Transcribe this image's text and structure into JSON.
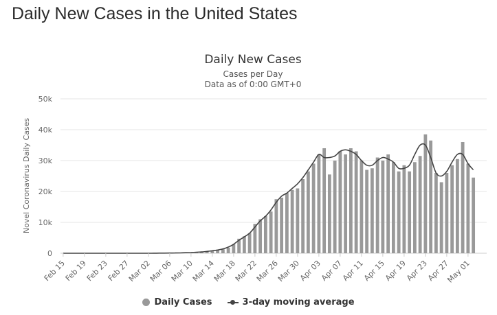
{
  "page": {
    "heading": "Daily New Cases in the United States"
  },
  "colors": {
    "bar": "#999999",
    "line": "#444444",
    "grid": "#e6e6e6",
    "text": "#666666"
  },
  "chart_data": {
    "type": "bar",
    "title": "Daily New Cases",
    "subtitle": "Cases per Day",
    "subtitle2": "Data as of 0:00 GMT+0",
    "ylabel": "Novel Coronavirus Daily Cases",
    "xlabel": "",
    "ylim": [
      0,
      50000
    ],
    "y_ticks": [
      0,
      10000,
      20000,
      30000,
      40000,
      50000
    ],
    "y_tick_labels": [
      "0",
      "10k",
      "20k",
      "30k",
      "40k",
      "50k"
    ],
    "x_tick_labels": [
      "Feb 15",
      "Feb 19",
      "Feb 23",
      "Feb 27",
      "Mar 02",
      "Mar 06",
      "Mar 10",
      "Mar 14",
      "Mar 18",
      "Mar 22",
      "Mar 26",
      "Mar 30",
      "Apr 03",
      "Apr 07",
      "Apr 11",
      "Apr 15",
      "Apr 19",
      "Apr 23",
      "Apr 27",
      "May 01"
    ],
    "x_tick_every": 4,
    "grid": true,
    "legend_position": "bottom-center",
    "categories": [
      "Feb 15",
      "Feb 16",
      "Feb 17",
      "Feb 18",
      "Feb 19",
      "Feb 20",
      "Feb 21",
      "Feb 22",
      "Feb 23",
      "Feb 24",
      "Feb 25",
      "Feb 26",
      "Feb 27",
      "Feb 28",
      "Feb 29",
      "Mar 01",
      "Mar 02",
      "Mar 03",
      "Mar 04",
      "Mar 05",
      "Mar 06",
      "Mar 07",
      "Mar 08",
      "Mar 09",
      "Mar 10",
      "Mar 11",
      "Mar 12",
      "Mar 13",
      "Mar 14",
      "Mar 15",
      "Mar 16",
      "Mar 17",
      "Mar 18",
      "Mar 19",
      "Mar 20",
      "Mar 21",
      "Mar 22",
      "Mar 23",
      "Mar 24",
      "Mar 25",
      "Mar 26",
      "Mar 27",
      "Mar 28",
      "Mar 29",
      "Mar 30",
      "Mar 31",
      "Apr 01",
      "Apr 02",
      "Apr 03",
      "Apr 04",
      "Apr 05",
      "Apr 06",
      "Apr 07",
      "Apr 08",
      "Apr 09",
      "Apr 10",
      "Apr 11",
      "Apr 12",
      "Apr 13",
      "Apr 14",
      "Apr 15",
      "Apr 16",
      "Apr 17",
      "Apr 18",
      "Apr 19",
      "Apr 20",
      "Apr 21",
      "Apr 22",
      "Apr 23",
      "Apr 24",
      "Apr 25",
      "Apr 26",
      "Apr 27",
      "Apr 28",
      "Apr 29",
      "Apr 30",
      "May 01",
      "May 02",
      "May 03",
      "May 04"
    ],
    "series": [
      {
        "name": "Daily Cases",
        "type": "bar",
        "values": [
          0,
          0,
          0,
          0,
          0,
          0,
          0,
          0,
          0,
          0,
          0,
          0,
          0,
          0,
          0,
          0,
          0,
          20,
          30,
          50,
          70,
          100,
          120,
          150,
          250,
          300,
          450,
          550,
          800,
          1000,
          1300,
          1800,
          2900,
          4700,
          5500,
          6500,
          9500,
          11000,
          12000,
          13500,
          17500,
          18000,
          19500,
          20500,
          21000,
          24000,
          26500,
          29000,
          32000,
          34000,
          25500,
          30000,
          33000,
          32000,
          34000,
          33000,
          30000,
          27000,
          27500,
          31000,
          30000,
          32000,
          29500,
          26500,
          28500,
          26500,
          29500,
          31500,
          38500,
          36500,
          26000,
          23000,
          26000,
          28500,
          30500,
          36000,
          29000,
          24500,
          0,
          0
        ]
      },
      {
        "name": "3-day moving average",
        "type": "line",
        "values": [
          0,
          0,
          0,
          0,
          0,
          0,
          0,
          0,
          0,
          0,
          0,
          0,
          0,
          0,
          0,
          0,
          0,
          15,
          35,
          50,
          70,
          95,
          120,
          170,
          230,
          330,
          430,
          600,
          800,
          1050,
          1400,
          2000,
          2900,
          4200,
          5300,
          6500,
          8500,
          10500,
          12000,
          14000,
          16500,
          18500,
          19500,
          21000,
          22500,
          24500,
          27000,
          29500,
          32000,
          31000,
          31000,
          31500,
          33000,
          33500,
          33000,
          32000,
          30000,
          28500,
          28500,
          30000,
          31000,
          30500,
          29500,
          27500,
          27500,
          28500,
          32000,
          35000,
          35000,
          31000,
          26000,
          25000,
          26500,
          29500,
          32000,
          32000,
          29000,
          27000,
          null,
          null
        ]
      }
    ]
  }
}
